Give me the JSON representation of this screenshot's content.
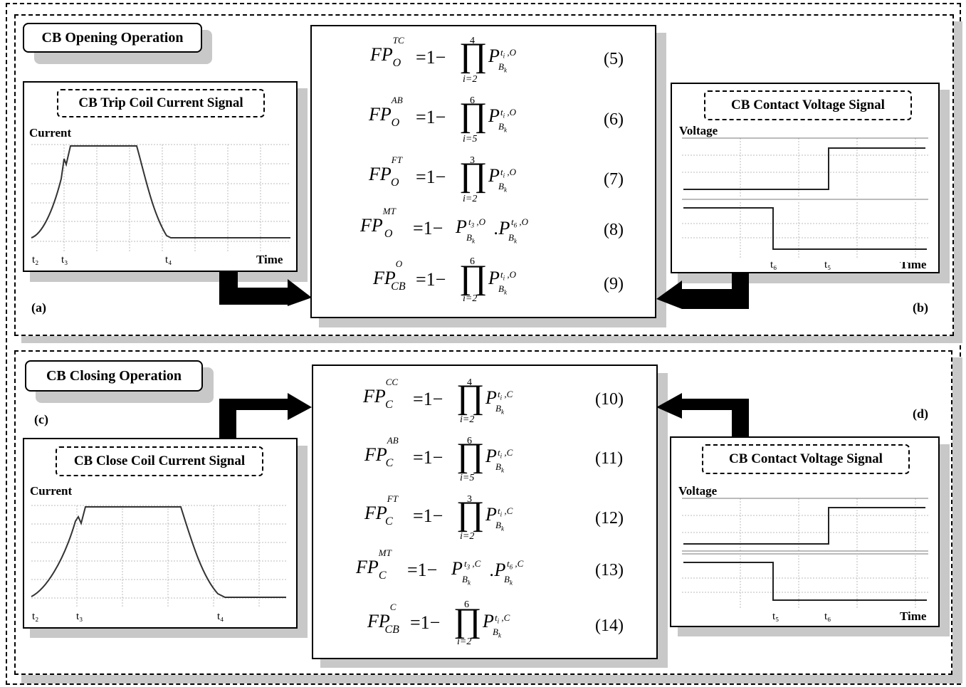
{
  "opening": {
    "title": "CB Opening Operation",
    "tag_left": "(a)",
    "tag_right": "(b)",
    "trip_signal": {
      "title": "CB Trip Coil Current Signal",
      "ylabel": "Current",
      "xlabel": "Time",
      "ticks": [
        "t₂",
        "t₃",
        "t₄"
      ]
    },
    "voltage_signal": {
      "title": "CB Contact Voltage Signal",
      "ylabel": "Voltage",
      "xlabel": "Time",
      "ticks": [
        "t₆",
        "t₅"
      ]
    },
    "equations": [
      {
        "lhs_sup": "TC",
        "lhs_sub": "O",
        "upper": "4",
        "lower": "i=2",
        "sup": "O",
        "num": "(5)"
      },
      {
        "lhs_sup": "AB",
        "lhs_sub": "O",
        "upper": "6",
        "lower": "i=5",
        "sup": "O",
        "num": "(6)"
      },
      {
        "lhs_sup": "FT",
        "lhs_sub": "O",
        "upper": "3",
        "lower": "i=2",
        "sup": "O",
        "num": "(7)"
      },
      {
        "lhs_sup": "MT",
        "lhs_sub": "O",
        "sup": "O",
        "num": "(8)"
      },
      {
        "lhs_sup": "O",
        "lhs_sub": "CB",
        "upper": "6",
        "lower": "i=2",
        "sup": "O",
        "num": "(9)"
      }
    ]
  },
  "closing": {
    "title": "CB Closing Operation",
    "tag_left": "(c)",
    "tag_right": "(d)",
    "close_signal": {
      "title": "CB Close Coil Current Signal",
      "ylabel": "Current",
      "ticks": [
        "t₂",
        "t₃",
        "t₄"
      ]
    },
    "voltage_signal": {
      "title": "CB Contact Voltage Signal",
      "ylabel": "Voltage",
      "xlabel": "Time",
      "ticks": [
        "t₅",
        "t₆"
      ]
    },
    "equations": [
      {
        "lhs_sup": "CC",
        "lhs_sub": "C",
        "upper": "4",
        "lower": "i=2",
        "sup": "C",
        "num": "(10)"
      },
      {
        "lhs_sup": "AB",
        "lhs_sub": "C",
        "upper": "6",
        "lower": "i=5",
        "sup": "C",
        "num": "(11)"
      },
      {
        "lhs_sup": "FT",
        "lhs_sub": "C",
        "upper": "3",
        "lower": "i=2",
        "sup": "C",
        "num": "(12)"
      },
      {
        "lhs_sup": "MT",
        "lhs_sub": "C",
        "sup": "C",
        "num": "(13)"
      },
      {
        "lhs_sup": "C",
        "lhs_sub": "CB",
        "upper": "6",
        "lower": "i=2",
        "sup": "C",
        "num": "(14)"
      }
    ]
  }
}
